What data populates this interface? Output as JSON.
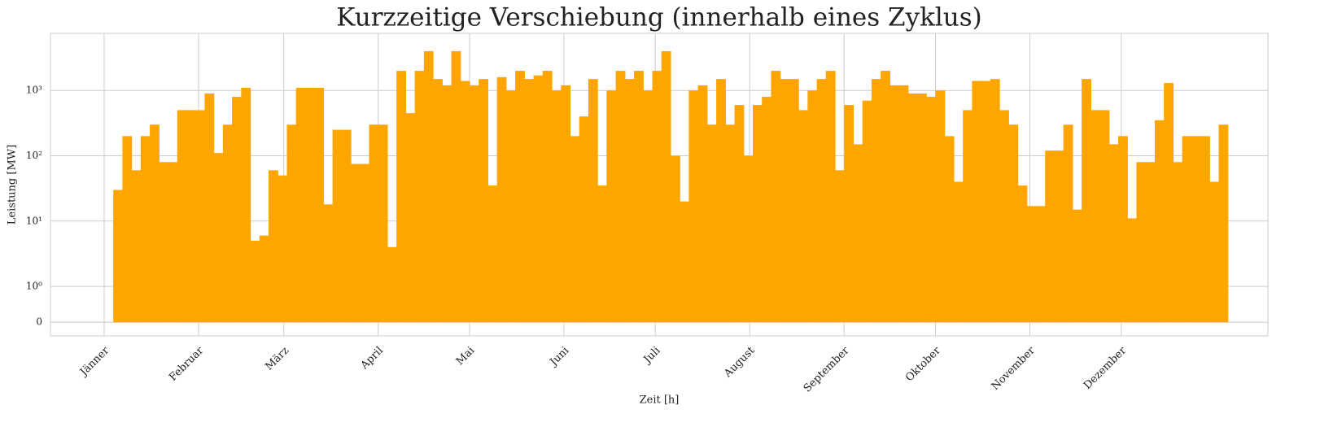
{
  "chart_data": {
    "type": "step_area",
    "title": "Kurzzeitige Verschiebung (innerhalb eines Zyklus)",
    "xlabel": "Zeit [h]",
    "ylabel": "Leistung [MW]",
    "color": "#ffa500",
    "yscale": "symlog",
    "grid": true,
    "xlim": [
      -423,
      9172
    ],
    "ylim": [
      -0.38,
      7500
    ],
    "xticks": [
      {
        "value": 0,
        "label": "Jänner"
      },
      {
        "value": 744,
        "label": "Februar"
      },
      {
        "value": 1416,
        "label": "März"
      },
      {
        "value": 2160,
        "label": "April"
      },
      {
        "value": 2880,
        "label": "Mai"
      },
      {
        "value": 3624,
        "label": "Juni"
      },
      {
        "value": 4344,
        "label": "Juli"
      },
      {
        "value": 5088,
        "label": "August"
      },
      {
        "value": 5832,
        "label": "September"
      },
      {
        "value": 6552,
        "label": "Oktober"
      },
      {
        "value": 7296,
        "label": "November"
      },
      {
        "value": 8016,
        "label": "Dezember"
      }
    ],
    "yticks": [
      0,
      {
        "value": 1,
        "label": "10⁰"
      },
      {
        "value": 10,
        "label": "10¹"
      },
      {
        "value": 100,
        "label": "10²"
      },
      {
        "value": 1000,
        "label": "10³"
      }
    ],
    "x": [
      0,
      72,
      144,
      216,
      288,
      360,
      432,
      504,
      576,
      648,
      720,
      792,
      864,
      936,
      1008,
      1080,
      1152,
      1224,
      1296,
      1368,
      1440,
      1512,
      1584,
      1656,
      1728,
      1800,
      1872,
      1944,
      2016,
      2088,
      2160,
      2232,
      2304,
      2376,
      2448,
      2520,
      2592,
      2664,
      2736,
      2808,
      2880,
      2952,
      3024,
      3096,
      3168,
      3240,
      3312,
      3384,
      3456,
      3528,
      3600,
      3672,
      3744,
      3816,
      3888,
      3960,
      4032,
      4104,
      4176,
      4248,
      4320,
      4392,
      4464,
      4536,
      4608,
      4680,
      4752,
      4824,
      4896,
      4968,
      5040,
      5112,
      5184,
      5256,
      5328,
      5400,
      5472,
      5544,
      5616,
      5688,
      5760,
      5832,
      5904,
      5976,
      6048,
      6120,
      6192,
      6264,
      6336,
      6408,
      6480,
      6552,
      6624,
      6696,
      6768,
      6840,
      6912,
      6984,
      7056,
      7128,
      7200,
      7272,
      7344,
      7416,
      7488,
      7560,
      7632,
      7704,
      7776,
      7848,
      7920,
      7992,
      8064,
      8136,
      8208,
      8280,
      8352,
      8424,
      8496,
      8568,
      8640,
      8712,
      8784
    ],
    "values": [
      0,
      30,
      200,
      60,
      200,
      300,
      80,
      80,
      500,
      500,
      500,
      900,
      110,
      300,
      800,
      1100,
      5,
      6,
      60,
      50,
      300,
      1100,
      1100,
      1100,
      18,
      250,
      250,
      75,
      75,
      300,
      300,
      4,
      2000,
      450,
      2000,
      4000,
      1500,
      1200,
      4000,
      1400,
      1200,
      1500,
      35,
      1600,
      1000,
      2000,
      1500,
      1700,
      2000,
      1000,
      1200,
      200,
      400,
      1500,
      35,
      1000,
      2000,
      1500,
      2000,
      1000,
      2000,
      4000,
      100,
      20,
      1000,
      1200,
      300,
      1500,
      300,
      600,
      100,
      600,
      800,
      2000,
      1500,
      1500,
      500,
      1000,
      1500,
      2000,
      60,
      600,
      150,
      700,
      1500,
      2000,
      1200,
      1200,
      900,
      900,
      800,
      1000,
      200,
      40,
      500,
      1400,
      1400,
      1500,
      500,
      300,
      35,
      17,
      17,
      120,
      120,
      300,
      15,
      1500,
      500,
      500,
      150,
      200,
      11,
      80,
      80,
      350,
      1300,
      80,
      200,
      200,
      200,
      40,
      300
    ]
  }
}
